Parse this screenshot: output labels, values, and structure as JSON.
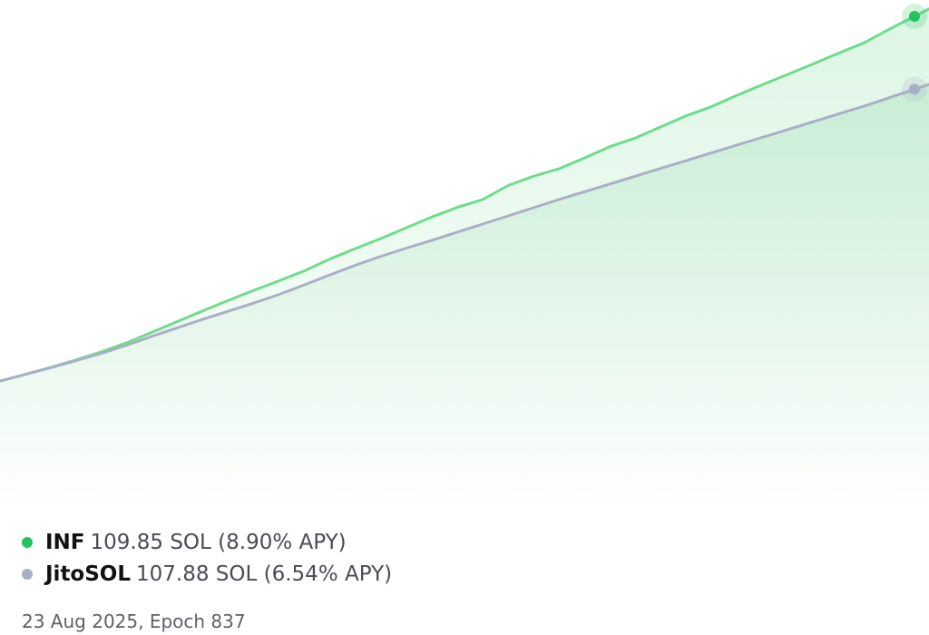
{
  "chart_data": {
    "type": "area",
    "series": [
      {
        "name": "INF",
        "value_text": "109.85 SOL (8.90% APY)",
        "color": "#21c45d",
        "line_color": "#6fdc8c",
        "values": [
          100.0,
          100.18,
          100.37,
          100.57,
          100.79,
          101.04,
          101.32,
          101.61,
          101.9,
          102.18,
          102.45,
          102.71,
          102.98,
          103.3,
          103.58,
          103.85,
          104.14,
          104.43,
          104.69,
          104.9,
          105.28,
          105.53,
          105.73,
          106.02,
          106.33,
          106.56,
          106.86,
          107.16,
          107.41,
          107.71,
          108.0,
          108.28,
          108.56,
          108.85,
          109.13,
          109.5,
          109.85
        ]
      },
      {
        "name": "JitoSOL",
        "value_text": "107.88 SOL (6.54% APY)",
        "color": "#a9b0c6",
        "line_color": "#a9b0c6",
        "values": [
          100.0,
          100.18,
          100.36,
          100.55,
          100.75,
          100.97,
          101.21,
          101.44,
          101.67,
          101.89,
          102.11,
          102.34,
          102.6,
          102.87,
          103.13,
          103.37,
          103.59,
          103.8,
          104.02,
          104.24,
          104.46,
          104.68,
          104.9,
          105.11,
          105.32,
          105.53,
          105.74,
          105.95,
          106.16,
          106.37,
          106.58,
          106.79,
          107.0,
          107.21,
          107.42,
          107.65,
          107.88
        ]
      }
    ],
    "footer": "23 Aug 2025, Epoch 837",
    "ylim": [
      95.3,
      110.0
    ],
    "grid": false,
    "legend_placement": "bottom-left"
  }
}
